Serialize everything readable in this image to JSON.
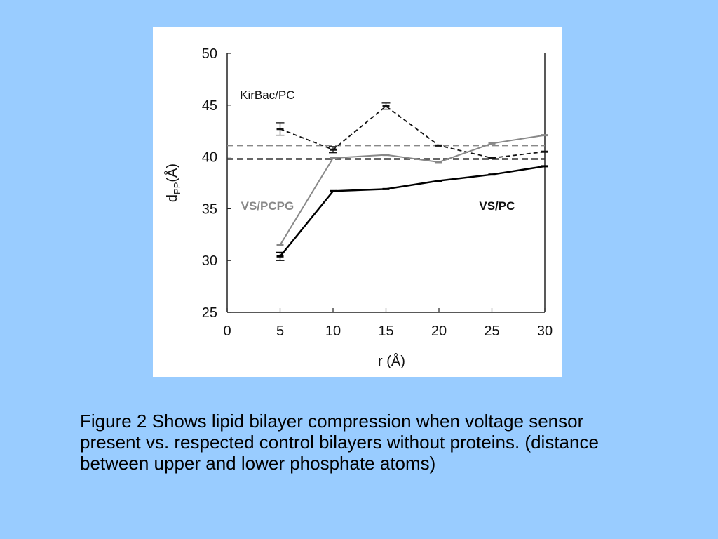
{
  "chart_data": {
    "type": "line",
    "xlabel": "r (Å)",
    "ylabel_main": "d",
    "ylabel_sub": "PP",
    "ylabel_unit": "(Å)",
    "xlim": [
      0,
      30
    ],
    "ylim": [
      25,
      50
    ],
    "xticks": [
      0,
      5,
      10,
      15,
      20,
      25,
      30
    ],
    "yticks": [
      25,
      30,
      35,
      40,
      45,
      50
    ],
    "grid": false,
    "annotations": [
      {
        "text": "KirBac/PC",
        "x": 1.2,
        "y": 45.6,
        "color": "#111111",
        "weight": "normal"
      },
      {
        "text": "VS/PCPG",
        "x": 1.3,
        "y": 34.9,
        "color": "#888888",
        "weight": "bold"
      },
      {
        "text": "VS/PC",
        "x": 23.8,
        "y": 34.9,
        "color": "#111111",
        "weight": "bold"
      }
    ],
    "series": [
      {
        "x": [
          5,
          10,
          15,
          20,
          25,
          30
        ],
        "values": [
          42.7,
          40.7,
          44.9,
          41.1,
          39.9,
          40.5
        ],
        "err": [
          0.6,
          0.3,
          0.3,
          0,
          0,
          0
        ],
        "color": "#111111",
        "dash": "6,4",
        "width": 1.8
      },
      {
        "x": [
          5,
          10,
          15,
          20,
          25,
          30
        ],
        "values": [
          31.5,
          39.9,
          40.2,
          39.5,
          41.3,
          42.1
        ],
        "err": [
          0,
          0,
          0,
          0,
          0,
          0
        ],
        "color": "#888888",
        "dash": "",
        "width": 2
      },
      {
        "x": [
          5,
          10,
          15,
          20,
          25,
          30
        ],
        "values": [
          30.4,
          36.7,
          36.9,
          37.7,
          38.3,
          39.1
        ],
        "err": [
          0.4,
          0,
          0,
          0,
          0,
          0
        ],
        "color": "#000000",
        "dash": "",
        "width": 2.5
      }
    ],
    "reference_lines": [
      {
        "y": 41.1,
        "color": "#888888",
        "dash": "9,5",
        "width": 2
      },
      {
        "y": 39.8,
        "color": "#333333",
        "dash": "9,5",
        "width": 2.5
      }
    ]
  },
  "caption": "Figure 2 Shows lipid bilayer compression when voltage sensor present vs. respected control bilayers without proteins. (distance between upper and lower phosphate atoms)"
}
